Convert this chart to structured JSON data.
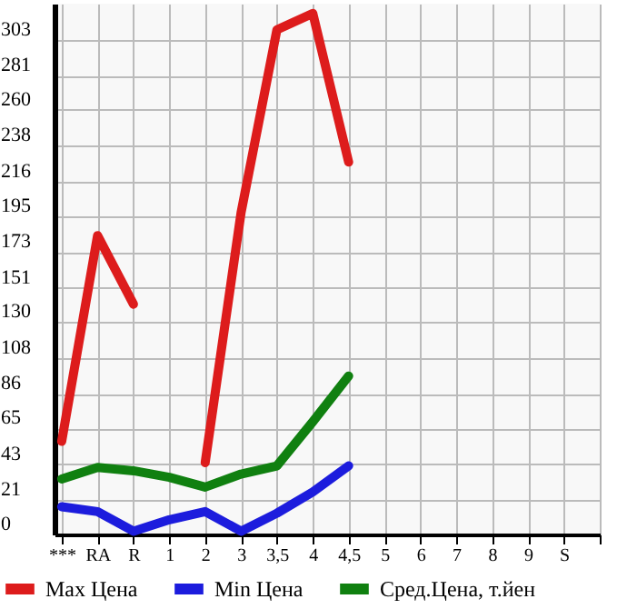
{
  "chart_data": {
    "type": "line",
    "categories": [
      "***",
      "RA",
      "R",
      "1",
      "2",
      "3",
      "3,5",
      "4",
      "4,5",
      "5",
      "6",
      "7",
      "8",
      "9",
      "S",
      null
    ],
    "series": [
      {
        "name": "Max Цена",
        "color": "#dd1c1c",
        "values": [
          57,
          183,
          141,
          null,
          44,
          197,
          309,
          319,
          228,
          null,
          null,
          null,
          null,
          null,
          null,
          null
        ]
      },
      {
        "name": "Min Цена",
        "color": "#1c1cdd",
        "values": [
          17,
          14,
          2,
          9,
          14,
          2,
          13,
          26,
          42,
          null,
          null,
          null,
          null,
          null,
          null,
          null
        ]
      },
      {
        "name": "Сред.Цена, т.йен",
        "color": "#108010",
        "values": [
          34,
          41,
          39,
          35,
          29,
          37,
          42,
          69,
          97,
          null,
          null,
          null,
          null,
          null,
          null,
          null
        ]
      }
    ],
    "ylim": [
      0,
      325
    ],
    "yticks": [
      0,
      21,
      43,
      65,
      86,
      108,
      130,
      151,
      173,
      195,
      216,
      238,
      260,
      281,
      303
    ],
    "grid": true,
    "legend": "bottom",
    "marker": "none",
    "line_style": "solid"
  }
}
